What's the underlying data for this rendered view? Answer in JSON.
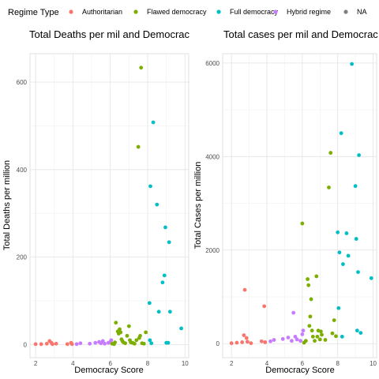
{
  "legend": {
    "title": "Regime Type",
    "position": "top",
    "entries": [
      {
        "label": "Authoritarian",
        "color": "#F8766D"
      },
      {
        "label": "Flawed democracy",
        "color": "#7CAE00"
      },
      {
        "label": "Full democracy",
        "color": "#00BFC4"
      },
      {
        "label": "Hybrid regime",
        "color": "#C77CFF"
      },
      {
        "label": "NA",
        "color": "#7F7F7F"
      }
    ]
  },
  "chart_data": [
    {
      "type": "scatter",
      "title": "Total Deaths per mil and Democrac",
      "xlabel": "Democracy Score",
      "ylabel": "Total Deaths per million",
      "xlim": [
        1.7,
        10.2
      ],
      "ylim": [
        -30,
        665
      ],
      "xticks": [
        2,
        4,
        6,
        8,
        10
      ],
      "yticks": [
        0,
        200,
        400,
        600
      ],
      "grid": true,
      "series": [
        {
          "name": "Authoritarian",
          "points": [
            [
              2.0,
              1
            ],
            [
              2.3,
              1
            ],
            [
              2.6,
              2
            ],
            [
              2.75,
              8
            ],
            [
              2.85,
              4
            ],
            [
              2.9,
              1
            ],
            [
              3.1,
              2
            ],
            [
              3.7,
              1
            ],
            [
              3.9,
              4
            ],
            [
              3.95,
              1
            ]
          ]
        },
        {
          "name": "Hybrid regime",
          "points": [
            [
              4.2,
              1
            ],
            [
              4.4,
              3
            ],
            [
              4.9,
              2
            ],
            [
              5.2,
              4
            ],
            [
              5.4,
              6
            ],
            [
              5.5,
              3
            ],
            [
              5.6,
              8
            ],
            [
              5.7,
              2
            ],
            [
              5.9,
              4
            ],
            [
              6.0,
              6
            ],
            [
              6.05,
              10
            ]
          ]
        },
        {
          "name": "Flawed democracy",
          "points": [
            [
              6.1,
              2
            ],
            [
              6.2,
              1
            ],
            [
              6.25,
              5
            ],
            [
              6.3,
              50
            ],
            [
              6.4,
              30
            ],
            [
              6.45,
              25
            ],
            [
              6.5,
              35
            ],
            [
              6.55,
              28
            ],
            [
              6.6,
              12
            ],
            [
              6.65,
              8
            ],
            [
              6.7,
              5
            ],
            [
              6.8,
              3
            ],
            [
              6.9,
              20
            ],
            [
              7.0,
              42
            ],
            [
              7.05,
              10
            ],
            [
              7.1,
              5
            ],
            [
              7.2,
              4
            ],
            [
              7.3,
              2
            ],
            [
              7.4,
              10
            ],
            [
              7.5,
              452
            ],
            [
              7.55,
              15
            ],
            [
              7.6,
              20
            ],
            [
              7.65,
              633
            ],
            [
              7.7,
              3
            ],
            [
              7.8,
              2
            ],
            [
              7.9,
              28
            ]
          ]
        },
        {
          "name": "Full democracy",
          "points": [
            [
              8.1,
              95
            ],
            [
              8.12,
              10
            ],
            [
              8.15,
              362
            ],
            [
              8.2,
              3
            ],
            [
              8.3,
              508
            ],
            [
              8.5,
              320
            ],
            [
              8.6,
              75
            ],
            [
              8.8,
              142
            ],
            [
              8.9,
              158
            ],
            [
              8.95,
              268
            ],
            [
              9.0,
              4
            ],
            [
              9.1,
              4
            ],
            [
              9.15,
              234
            ],
            [
              9.2,
              75
            ],
            [
              9.8,
              37
            ]
          ]
        }
      ]
    },
    {
      "type": "scatter",
      "title": "Total cases per mil and Democrac",
      "xlabel": "Democracy Score",
      "ylabel": "Total Cases per million",
      "xlim": [
        1.5,
        10.2
      ],
      "ylim": [
        -300,
        6200
      ],
      "xticks": [
        2,
        4,
        6,
        8,
        10
      ],
      "yticks": [
        0,
        2000,
        4000,
        6000
      ],
      "grid": true,
      "series": [
        {
          "name": "Authoritarian",
          "points": [
            [
              2.0,
              10
            ],
            [
              2.3,
              20
            ],
            [
              2.6,
              30
            ],
            [
              2.7,
              180
            ],
            [
              2.75,
              1150
            ],
            [
              2.85,
              120
            ],
            [
              2.9,
              40
            ],
            [
              3.1,
              10
            ],
            [
              3.7,
              50
            ],
            [
              3.85,
              800
            ],
            [
              3.9,
              30
            ]
          ]
        },
        {
          "name": "Hybrid regime",
          "points": [
            [
              4.2,
              50
            ],
            [
              4.4,
              80
            ],
            [
              4.9,
              100
            ],
            [
              5.2,
              130
            ],
            [
              5.4,
              60
            ],
            [
              5.5,
              660
            ],
            [
              5.6,
              150
            ],
            [
              5.7,
              90
            ],
            [
              5.9,
              60
            ],
            [
              6.0,
              200
            ],
            [
              6.05,
              280
            ]
          ]
        },
        {
          "name": "Flawed democracy",
          "points": [
            [
              6.0,
              2570
            ],
            [
              6.1,
              20
            ],
            [
              6.2,
              60
            ],
            [
              6.3,
              1380
            ],
            [
              6.35,
              1250
            ],
            [
              6.4,
              380
            ],
            [
              6.45,
              580
            ],
            [
              6.5,
              950
            ],
            [
              6.55,
              280
            ],
            [
              6.6,
              150
            ],
            [
              6.7,
              60
            ],
            [
              6.8,
              1440
            ],
            [
              6.85,
              150
            ],
            [
              6.9,
              280
            ],
            [
              7.0,
              90
            ],
            [
              7.05,
              260
            ],
            [
              7.1,
              190
            ],
            [
              7.3,
              80
            ],
            [
              7.5,
              3340
            ],
            [
              7.6,
              4080
            ],
            [
              7.7,
              220
            ],
            [
              7.8,
              500
            ],
            [
              7.9,
              160
            ]
          ]
        },
        {
          "name": "Full democracy",
          "points": [
            [
              8.0,
              2380
            ],
            [
              8.05,
              760
            ],
            [
              8.1,
              1950
            ],
            [
              8.2,
              4500
            ],
            [
              8.25,
              150
            ],
            [
              8.3,
              1700
            ],
            [
              8.5,
              2360
            ],
            [
              8.6,
              1880
            ],
            [
              8.8,
              5980
            ],
            [
              9.0,
              3370
            ],
            [
              9.05,
              2240
            ],
            [
              9.1,
              280
            ],
            [
              9.15,
              1530
            ],
            [
              9.2,
              4030
            ],
            [
              9.3,
              230
            ],
            [
              9.9,
              1400
            ]
          ]
        }
      ]
    }
  ]
}
